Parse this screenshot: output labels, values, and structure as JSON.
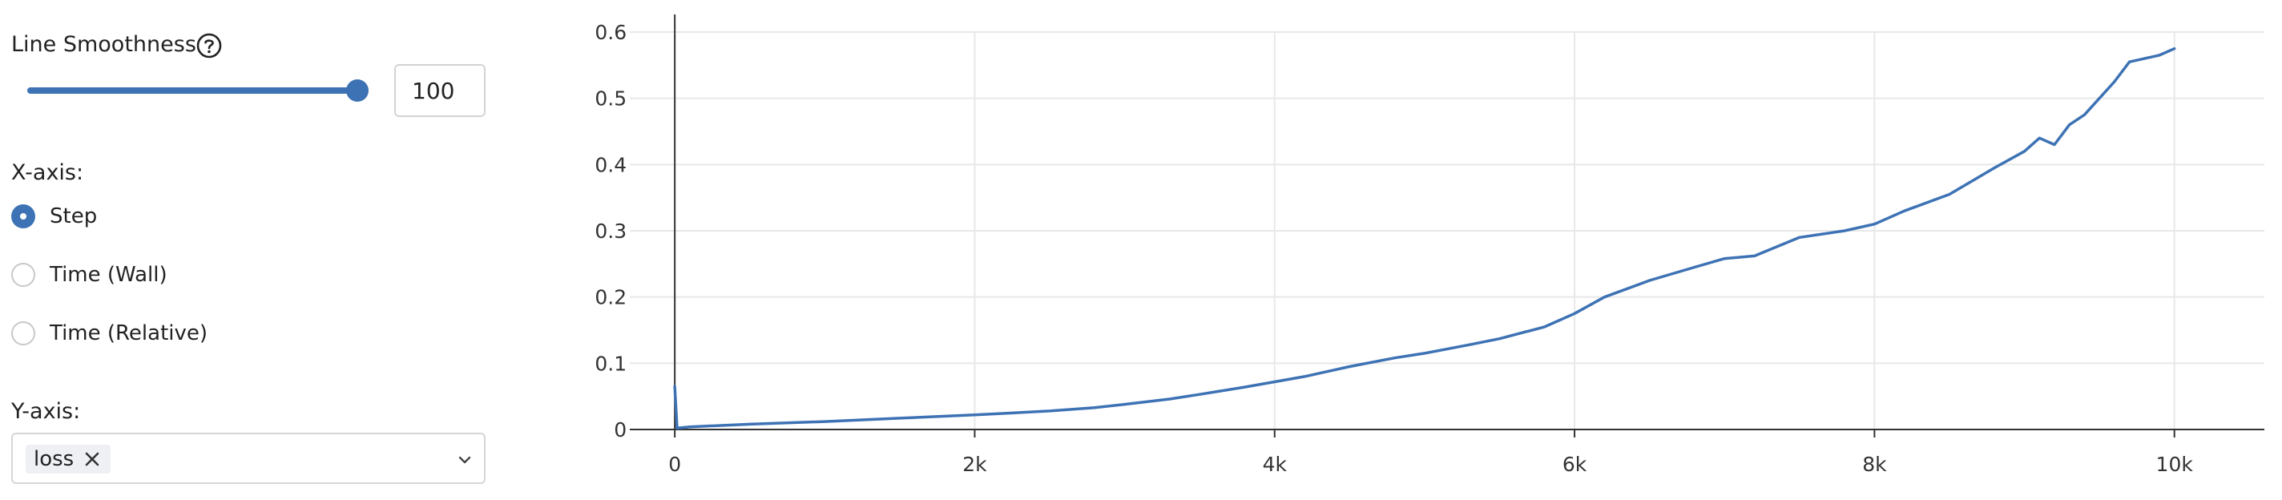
{
  "controls": {
    "smoothing_label": "Line Smoothness",
    "smoothing_value": "100",
    "smoothing_fraction": 1.0,
    "xaxis_label": "X-axis:",
    "xaxis_options": [
      "Step",
      "Time (Wall)",
      "Time (Relative)"
    ],
    "xaxis_selected": "Step",
    "yaxis_label": "Y-axis:",
    "yaxis_selected_chip": "loss"
  },
  "colors": {
    "accent": "#3d72b4",
    "grid": "#e8e8e8",
    "axis": "#333333"
  },
  "icons": {
    "help": "question-circle-icon",
    "chip_remove": "close-icon",
    "dropdown": "chevron-down-icon"
  },
  "chart_data": {
    "type": "line",
    "title": "",
    "xlabel": "",
    "ylabel": "",
    "xlim": [
      -300,
      10600
    ],
    "ylim": [
      0,
      0.6
    ],
    "xticks": [
      0,
      2000,
      4000,
      6000,
      8000,
      10000
    ],
    "xtick_labels": [
      "0",
      "2k",
      "4k",
      "6k",
      "8k",
      "10k"
    ],
    "yticks": [
      0,
      0.1,
      0.2,
      0.3,
      0.4,
      0.5,
      0.6
    ],
    "ytick_labels": [
      "0",
      "0.1",
      "0.2",
      "0.3",
      "0.4",
      "0.5",
      "0.6"
    ],
    "grid": true,
    "legend": "none",
    "series": [
      {
        "x": [
          0,
          15,
          100,
          500,
          1000,
          1500,
          2000,
          2500,
          2800,
          3000,
          3300,
          3500,
          3800,
          4000,
          4200,
          4500,
          4800,
          5000,
          5300,
          5500,
          5800,
          6000,
          6200,
          6500,
          6800,
          7000,
          7200,
          7500,
          7800,
          8000,
          8200,
          8500,
          8800,
          9000,
          9100,
          9200,
          9300,
          9400,
          9500,
          9600,
          9700,
          9800,
          9900,
          10000
        ],
        "y": [
          0.065,
          0.002,
          0.004,
          0.008,
          0.012,
          0.017,
          0.022,
          0.028,
          0.033,
          0.038,
          0.046,
          0.053,
          0.064,
          0.072,
          0.08,
          0.095,
          0.108,
          0.115,
          0.128,
          0.137,
          0.155,
          0.175,
          0.2,
          0.225,
          0.245,
          0.258,
          0.262,
          0.29,
          0.3,
          0.31,
          0.33,
          0.355,
          0.395,
          0.42,
          0.44,
          0.43,
          0.46,
          0.475,
          0.5,
          0.525,
          0.555,
          0.56,
          0.565,
          0.575
        ]
      }
    ]
  }
}
